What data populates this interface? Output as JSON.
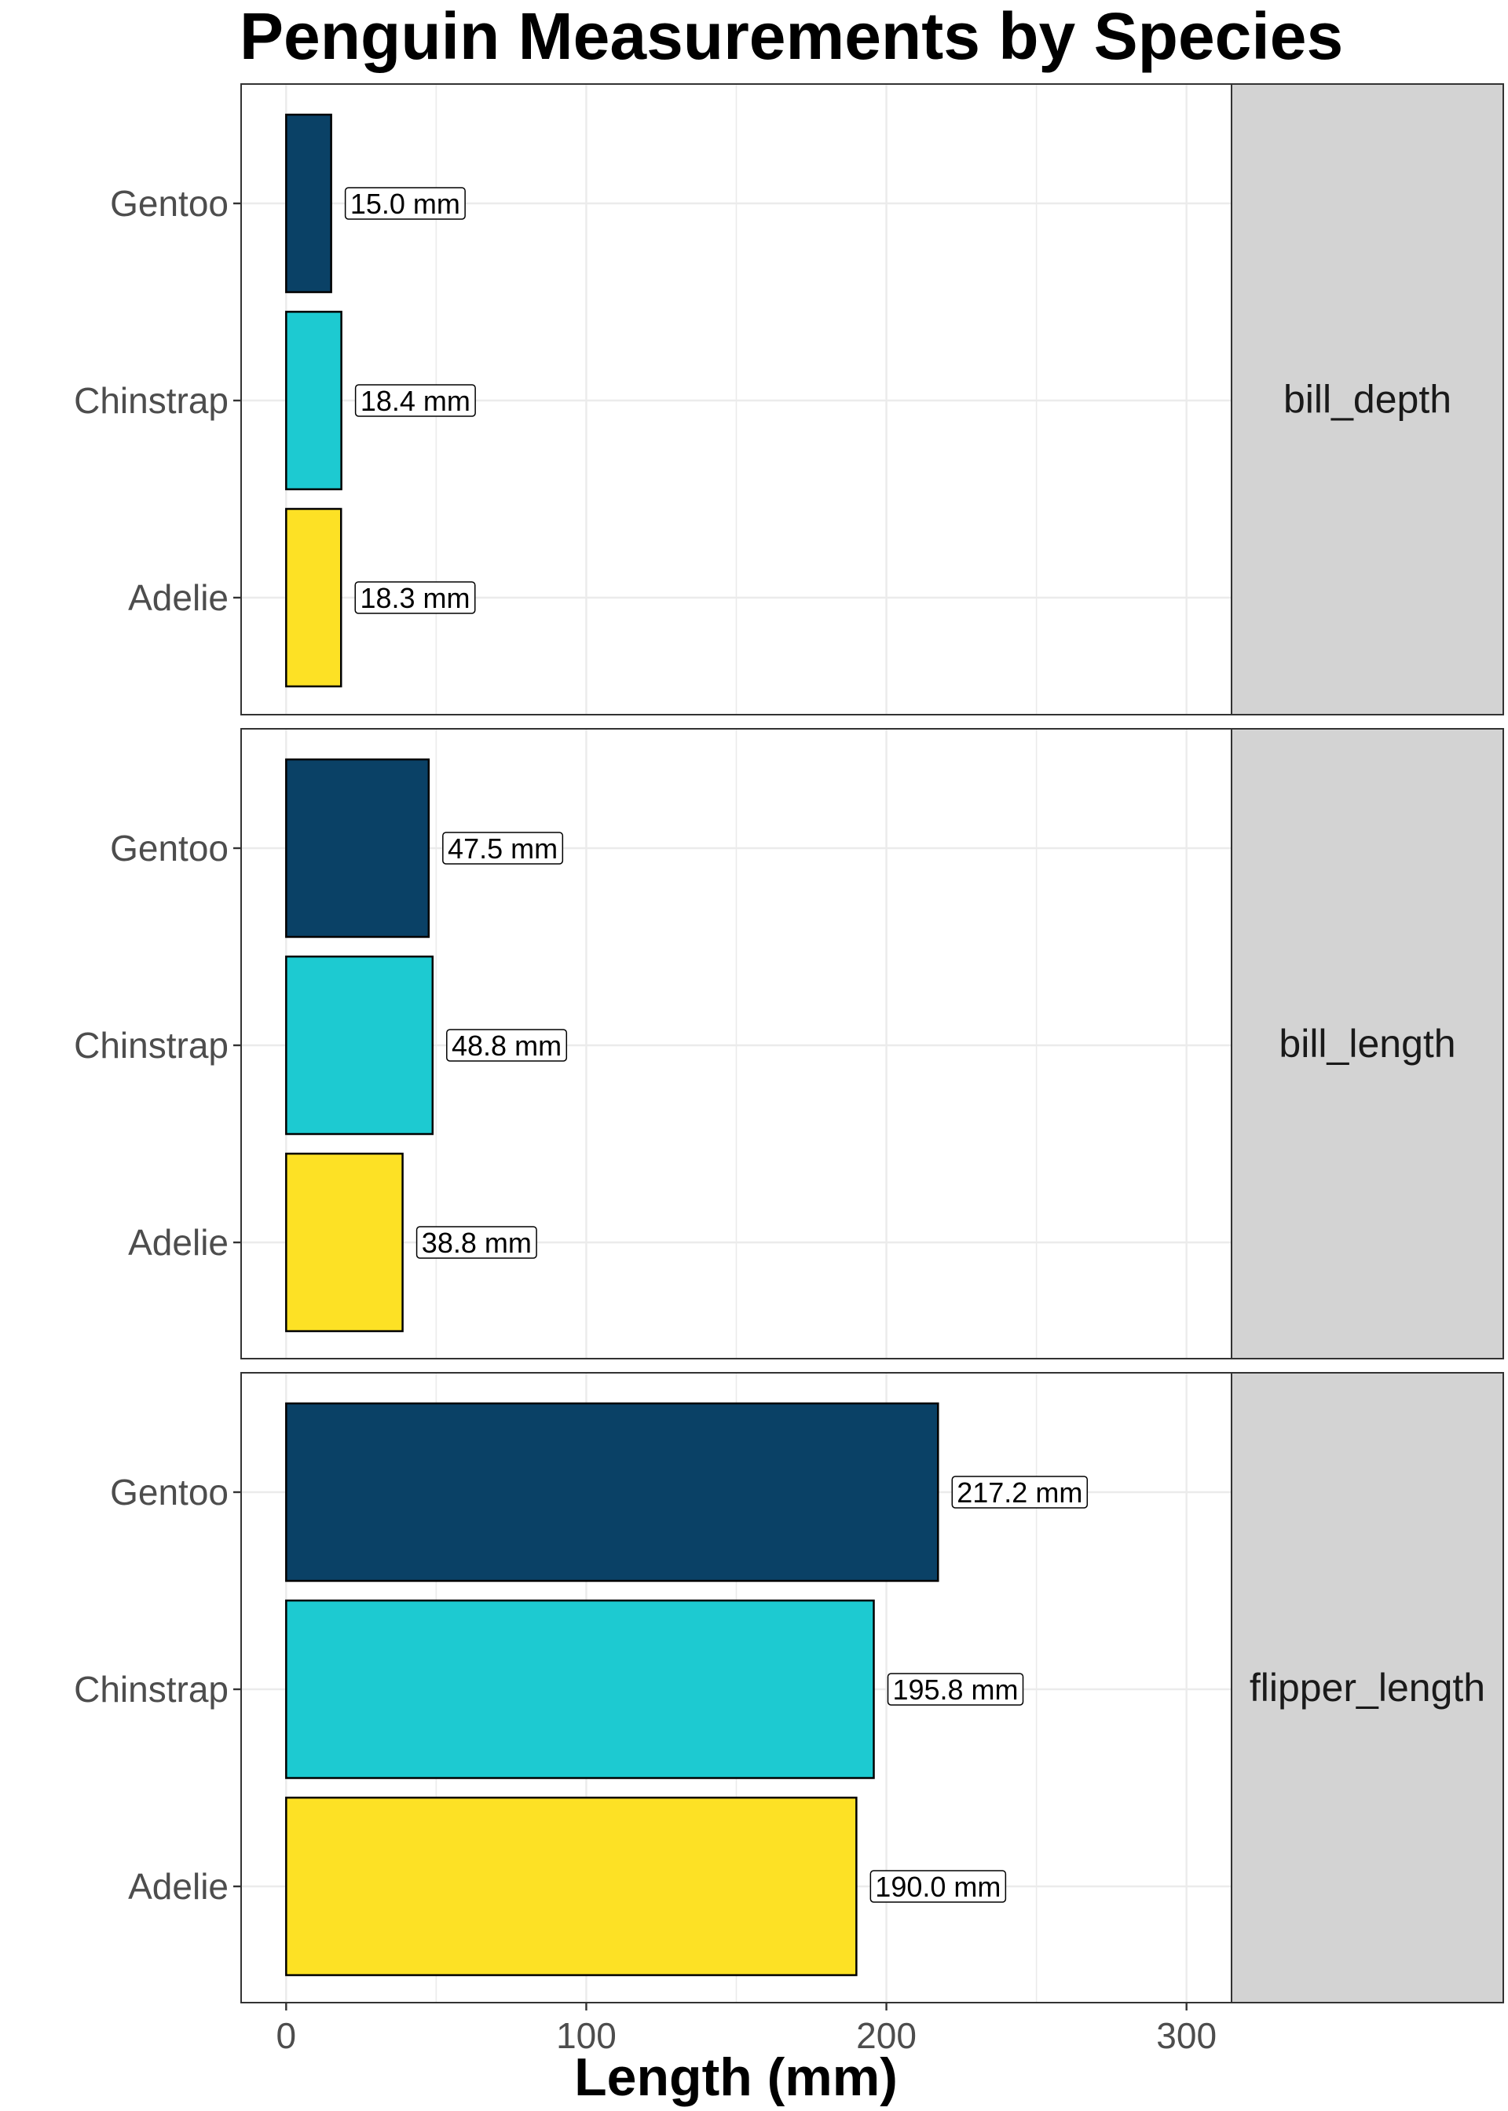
{
  "chart_data": {
    "type": "bar",
    "orientation": "horizontal",
    "title": "Penguin Measurements by Species",
    "xlabel": "Length (mm)",
    "ylabel": "",
    "xlim": [
      -15,
      315
    ],
    "x_ticks": [
      0,
      100,
      200,
      300
    ],
    "grid": true,
    "categories": [
      "Gentoo",
      "Chinstrap",
      "Adelie"
    ],
    "colors": {
      "Gentoo": "#0a4166",
      "Chinstrap": "#1dcad1",
      "Adelie": "#fde125"
    },
    "facets": [
      {
        "label": "bill_depth",
        "values": [
          {
            "species": "Gentoo",
            "value": 15.0,
            "label": "15.0 mm"
          },
          {
            "species": "Chinstrap",
            "value": 18.4,
            "label": "18.4 mm"
          },
          {
            "species": "Adelie",
            "value": 18.3,
            "label": "18.3 mm"
          }
        ]
      },
      {
        "label": "bill_length",
        "values": [
          {
            "species": "Gentoo",
            "value": 47.5,
            "label": "47.5 mm"
          },
          {
            "species": "Chinstrap",
            "value": 48.8,
            "label": "48.8 mm"
          },
          {
            "species": "Adelie",
            "value": 38.8,
            "label": "38.8 mm"
          }
        ]
      },
      {
        "label": "flipper_length",
        "values": [
          {
            "species": "Gentoo",
            "value": 217.2,
            "label": "217.2 mm"
          },
          {
            "species": "Chinstrap",
            "value": 195.8,
            "label": "195.8 mm"
          },
          {
            "species": "Adelie",
            "value": 190.0,
            "label": "190.0 mm"
          }
        ]
      }
    ]
  }
}
